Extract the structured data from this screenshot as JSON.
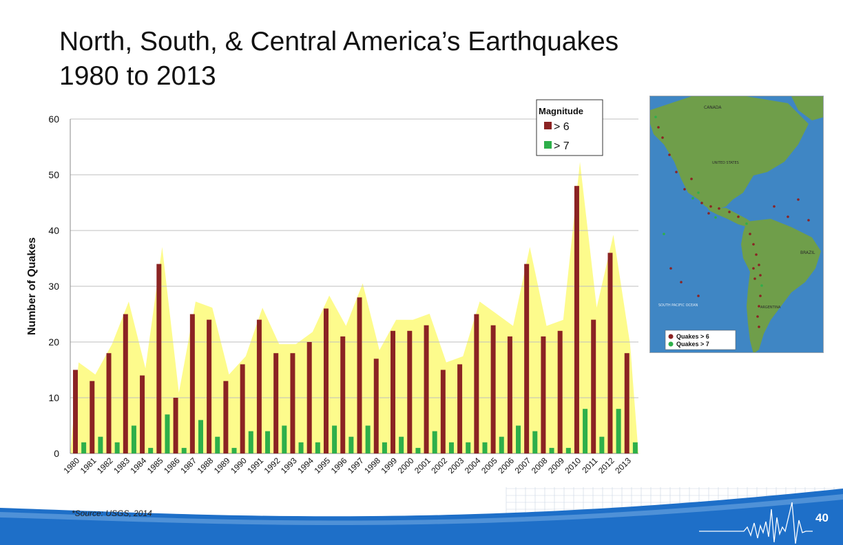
{
  "slide": {
    "title_line1": "North, South, & Central America’s Earthquakes",
    "title_line2": "1980 to 2013",
    "source": "*Source: USGS, 2014",
    "page_number": "40"
  },
  "colors": {
    "series_gt6": "#8b2323",
    "series_gt7": "#2eaf4a",
    "area_fill": "#fdfb8c",
    "grid": "#bfbfbf",
    "footer_blue": "#1e6fc8",
    "map_ocean": "#3f86c4",
    "map_land": "#6f9e4a"
  },
  "map": {
    "labels": [
      "CANADA",
      "UNITED STATES",
      "BRAZIL",
      "ARGENTINA",
      "SOUTH PACIFIC OCEAN"
    ],
    "legend": [
      "Quakes > 6",
      "Quakes > 7"
    ]
  },
  "chart_data": {
    "type": "bar",
    "title": "",
    "xlabel": "",
    "ylabel": "Number of Quakes",
    "ylim": [
      0,
      60
    ],
    "yticks": [
      0,
      10,
      20,
      30,
      40,
      50,
      60
    ],
    "grid": true,
    "legend": {
      "title": "Magnitude",
      "placement": "top-right"
    },
    "categories": [
      "1980",
      "1981",
      "1982",
      "1983",
      "1984",
      "1985",
      "1986",
      "1987",
      "1988",
      "1989",
      "1990",
      "1991",
      "1992",
      "1993",
      "1994",
      "1995",
      "1996",
      "1997",
      "1998",
      "1999",
      "2000",
      "2001",
      "2002",
      "2003",
      "2004",
      "2005",
      "2006",
      "2007",
      "2008",
      "2009",
      "2010",
      "2011",
      "2012",
      "2013"
    ],
    "series": [
      {
        "name": "> 6",
        "values": [
          15,
          13,
          18,
          25,
          14,
          34,
          10,
          25,
          24,
          13,
          16,
          24,
          18,
          18,
          20,
          26,
          21,
          28,
          17,
          22,
          22,
          23,
          15,
          16,
          25,
          23,
          21,
          34,
          21,
          22,
          48,
          24,
          36,
          18
        ]
      },
      {
        "name": "> 7",
        "values": [
          2,
          3,
          2,
          5,
          1,
          7,
          1,
          6,
          3,
          1,
          4,
          4,
          5,
          2,
          2,
          5,
          3,
          5,
          2,
          3,
          1,
          4,
          2,
          2,
          2,
          3,
          5,
          4,
          1,
          1,
          8,
          3,
          8,
          2
        ]
      }
    ]
  }
}
